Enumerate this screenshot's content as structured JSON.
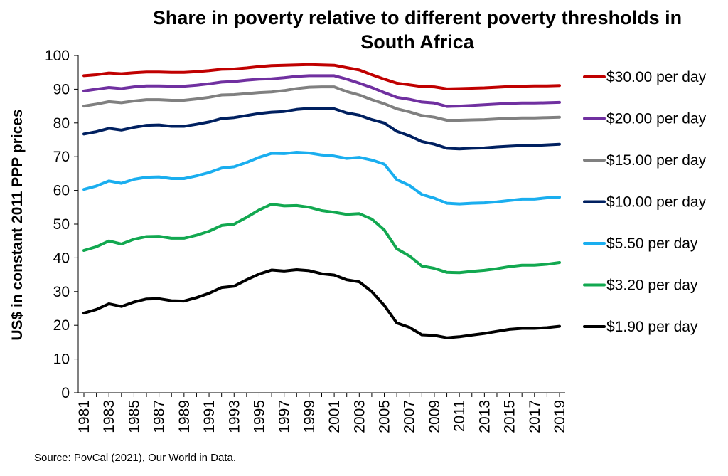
{
  "chart_data": {
    "type": "line",
    "title": "Share in poverty relative to different poverty thresholds in South Africa",
    "ylabel": "US$ in constant 2011 PPP prices",
    "xlabel": "",
    "ylim": [
      0,
      100
    ],
    "yticks": [
      0,
      10,
      20,
      30,
      40,
      50,
      60,
      70,
      80,
      90,
      100
    ],
    "xlim": [
      1981,
      2019
    ],
    "xticks": [
      1981,
      1983,
      1985,
      1987,
      1989,
      1991,
      1993,
      1995,
      1997,
      1999,
      2001,
      2003,
      2005,
      2007,
      2009,
      2011,
      2013,
      2015,
      2017,
      2019
    ],
    "grid": false,
    "legend_position": "right",
    "x": [
      1981,
      1982,
      1983,
      1984,
      1985,
      1986,
      1987,
      1988,
      1989,
      1990,
      1991,
      1992,
      1993,
      1994,
      1995,
      1996,
      1997,
      1998,
      1999,
      2000,
      2001,
      2002,
      2003,
      2004,
      2005,
      2006,
      2007,
      2008,
      2009,
      2010,
      2011,
      2012,
      2013,
      2014,
      2015,
      2016,
      2017,
      2018,
      2019
    ],
    "series": [
      {
        "name": "$30.00 per day",
        "color": "#c00000",
        "values": [
          94.0,
          94.3,
          94.8,
          94.6,
          94.9,
          95.1,
          95.1,
          95.0,
          95.0,
          95.2,
          95.5,
          95.9,
          96.0,
          96.3,
          96.7,
          97.0,
          97.1,
          97.2,
          97.3,
          97.2,
          97.1,
          96.4,
          95.7,
          94.3,
          93.0,
          91.8,
          91.3,
          90.8,
          90.7,
          90.1,
          90.2,
          90.3,
          90.4,
          90.6,
          90.8,
          90.9,
          91.0,
          91.0,
          91.1
        ]
      },
      {
        "name": "$20.00 per day",
        "color": "#7030a0",
        "values": [
          89.5,
          90.0,
          90.5,
          90.2,
          90.7,
          91.0,
          91.0,
          90.9,
          90.9,
          91.2,
          91.6,
          92.1,
          92.3,
          92.7,
          93.0,
          93.1,
          93.4,
          93.8,
          94.0,
          94.0,
          94.0,
          93.0,
          91.8,
          90.5,
          89.0,
          87.6,
          87.0,
          86.2,
          85.9,
          84.9,
          85.0,
          85.2,
          85.4,
          85.6,
          85.8,
          85.9,
          85.9,
          86.0,
          86.1
        ]
      },
      {
        "name": "$15.00 per day",
        "color": "#808080",
        "values": [
          85.0,
          85.6,
          86.3,
          86.0,
          86.5,
          86.9,
          86.9,
          86.7,
          86.7,
          87.1,
          87.6,
          88.3,
          88.4,
          88.7,
          89.0,
          89.2,
          89.6,
          90.2,
          90.6,
          90.7,
          90.7,
          89.3,
          88.3,
          86.9,
          85.7,
          84.2,
          83.3,
          82.2,
          81.7,
          80.8,
          80.8,
          80.9,
          81.0,
          81.2,
          81.4,
          81.5,
          81.5,
          81.6,
          81.7
        ]
      },
      {
        "name": "$10.00 per day",
        "color": "#002060",
        "values": [
          76.7,
          77.4,
          78.4,
          77.9,
          78.7,
          79.3,
          79.4,
          79.0,
          79.0,
          79.6,
          80.3,
          81.3,
          81.6,
          82.2,
          82.8,
          83.2,
          83.4,
          84.0,
          84.3,
          84.3,
          84.2,
          83.0,
          82.3,
          81.0,
          80.0,
          77.5,
          76.2,
          74.5,
          73.7,
          72.5,
          72.3,
          72.5,
          72.6,
          72.9,
          73.1,
          73.3,
          73.3,
          73.5,
          73.7
        ]
      },
      {
        "name": "$5.50 per day",
        "color": "#1aaeef",
        "values": [
          60.3,
          61.3,
          62.8,
          62.1,
          63.3,
          63.9,
          64.0,
          63.5,
          63.5,
          64.3,
          65.3,
          66.6,
          67.0,
          68.3,
          69.8,
          71.0,
          70.9,
          71.3,
          71.1,
          70.5,
          70.2,
          69.5,
          69.8,
          69.0,
          67.8,
          63.2,
          61.5,
          58.8,
          57.7,
          56.2,
          56.0,
          56.2,
          56.3,
          56.6,
          57.0,
          57.4,
          57.4,
          57.8,
          58.0
        ]
      },
      {
        "name": "$3.20 per day",
        "color": "#12a850",
        "values": [
          42.2,
          43.3,
          45.0,
          44.1,
          45.5,
          46.3,
          46.4,
          45.8,
          45.8,
          46.7,
          47.9,
          49.6,
          50.0,
          52.0,
          54.2,
          55.9,
          55.4,
          55.5,
          55.0,
          54.0,
          53.5,
          52.9,
          53.1,
          51.5,
          48.3,
          42.7,
          40.6,
          37.6,
          36.9,
          35.7,
          35.6,
          36.0,
          36.3,
          36.8,
          37.4,
          37.8,
          37.8,
          38.1,
          38.6
        ]
      },
      {
        "name": "$1.90 per day",
        "color": "#000000",
        "values": [
          23.6,
          24.7,
          26.4,
          25.6,
          26.9,
          27.8,
          27.9,
          27.3,
          27.2,
          28.2,
          29.5,
          31.2,
          31.6,
          33.5,
          35.2,
          36.4,
          36.1,
          36.5,
          36.2,
          35.3,
          34.9,
          33.5,
          32.9,
          30.0,
          25.9,
          20.7,
          19.4,
          17.2,
          17.0,
          16.3,
          16.6,
          17.1,
          17.6,
          18.2,
          18.8,
          19.1,
          19.1,
          19.3,
          19.7
        ]
      }
    ]
  },
  "source": "Source: PovCal (2021), Our World in Data."
}
